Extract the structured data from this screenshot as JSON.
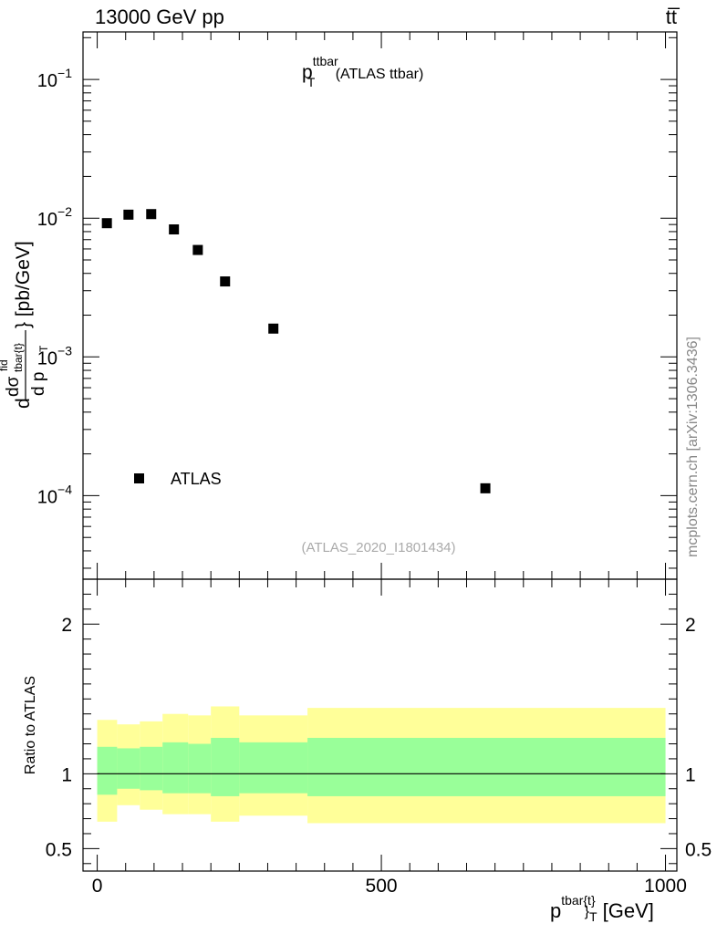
{
  "header": {
    "energy_label": "13000 GeV pp",
    "process_label": "tt̅"
  },
  "watermark": "mcplots.cern.ch [arXiv:1306.3436]",
  "analysis_id": "(ATLAS_2020_I1801434)",
  "chart_data": [
    {
      "type": "scatter",
      "panel": "main",
      "title": {
        "main": "p",
        "sup": "ttbar",
        "sub": "T",
        "suffix": " (ATLAS ttbar)"
      },
      "ylabel_parts": {
        "d1": "d",
        "dsig": "dσ",
        "fid": "fid",
        "sub": "tbar{t}",
        "brace": "} [pb/GeV]",
        "d2": "d p",
        "T": "T"
      },
      "yscale": "log",
      "ylim": [
        2.5e-05,
        0.22
      ],
      "xlim": [
        -25,
        1020
      ],
      "yticks": [
        {
          "value": 0.1,
          "base": "10",
          "exp": "−1"
        },
        {
          "value": 0.01,
          "base": "10",
          "exp": "−2"
        },
        {
          "value": 0.001,
          "base": "10",
          "exp": "−3"
        },
        {
          "value": 0.0001,
          "base": "10",
          "exp": "−4"
        }
      ],
      "legend": {
        "label": "ATLAS",
        "position": "bottom-left"
      },
      "series": [
        {
          "name": "ATLAS",
          "x": [
            17,
            55,
            95,
            135,
            177,
            225,
            310,
            683
          ],
          "y": [
            0.0092,
            0.0106,
            0.0107,
            0.0083,
            0.0059,
            0.0035,
            0.0016,
            0.000113
          ]
        }
      ]
    },
    {
      "type": "area",
      "panel": "ratio",
      "ylabel": "Ratio to ATLAS",
      "ylim": [
        0.35,
        2.3
      ],
      "xlim": [
        -25,
        1020
      ],
      "xlabel_parts": {
        "main": "p",
        "sup": "tbar{t}",
        "sub": "}",
        "T": "T",
        "unit": " [GeV]"
      },
      "xticks": [
        {
          "value": 0,
          "label": "0"
        },
        {
          "value": 500,
          "label": "500"
        },
        {
          "value": 1000,
          "label": "1000"
        }
      ],
      "yticks": [
        {
          "value": 0.5,
          "label": "0.5"
        },
        {
          "value": 1,
          "label": "1"
        },
        {
          "value": 2,
          "label": "2"
        }
      ],
      "reference_line": 1,
      "bins": [
        0,
        35,
        75,
        115,
        160,
        200,
        250,
        370,
        1000
      ],
      "band_outer": {
        "color": "#ffff99",
        "lo": [
          0.68,
          0.79,
          0.76,
          0.73,
          0.73,
          0.68,
          0.72,
          0.67
        ],
        "hi": [
          1.36,
          1.33,
          1.35,
          1.4,
          1.39,
          1.45,
          1.39,
          1.44
        ]
      },
      "band_inner": {
        "color": "#99ff99",
        "lo": [
          0.86,
          0.9,
          0.89,
          0.87,
          0.87,
          0.85,
          0.87,
          0.85
        ],
        "hi": [
          1.18,
          1.17,
          1.18,
          1.21,
          1.2,
          1.24,
          1.21,
          1.24
        ]
      }
    }
  ]
}
